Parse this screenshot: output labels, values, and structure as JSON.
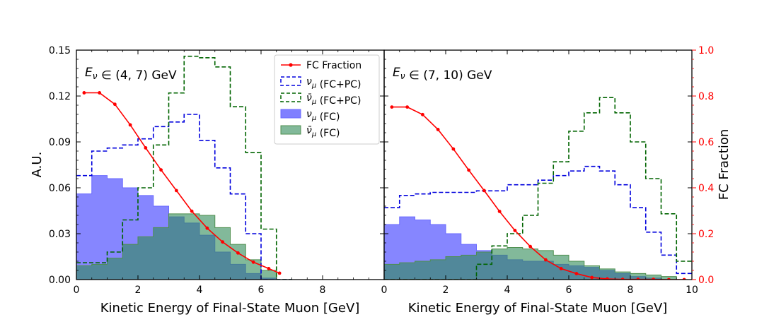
{
  "chart_data": {
    "type": "bar",
    "figure": {
      "xlabel": "Kinetic Energy of Final-State Muon [GeV]",
      "ylabel_left": "A.U.",
      "ylabel_right": "FC Fraction",
      "left_ylim": [
        0,
        0.15
      ],
      "left_yticks": [
        "0.00",
        "0.03",
        "0.06",
        "0.09",
        "0.12",
        "0.15"
      ],
      "right_ylim": [
        0,
        1.0
      ],
      "right_yticks": [
        "0.0",
        "0.2",
        "0.4",
        "0.6",
        "0.8",
        "1.0"
      ],
      "colors": {
        "fc_fraction": "#ff0000",
        "numu_total": "#0000dd",
        "numubar_total": "#006400",
        "numu_fc_fill": "#7f7fff",
        "numubar_fc_fill": "#2e8b57",
        "overlap_fill": "#2f6168",
        "axis": "#000000"
      },
      "legend": {
        "position": "top-center of left panel",
        "entries": [
          {
            "key": "fc",
            "label": "FC Fraction"
          },
          {
            "key": "numu_tot",
            "label": "ν_μ (FC+PC)"
          },
          {
            "key": "numubar_tot",
            "label": "ν̄_μ (FC+PC)"
          },
          {
            "key": "numu_fc",
            "label": "ν_μ (FC)"
          },
          {
            "key": "numubar_fc",
            "label": "ν̄_μ (FC)"
          }
        ]
      }
    },
    "panels": [
      {
        "label": "E_ν ∈ (4, 7) GeV",
        "xlim": [
          0,
          10
        ],
        "xticks": [
          "0",
          "2",
          "4",
          "6",
          "8"
        ],
        "bin_edges": [
          0,
          0.5,
          1,
          1.5,
          2,
          2.5,
          3,
          3.5,
          4,
          4.5,
          5,
          5.5,
          6,
          6.5,
          7
        ],
        "series": [
          {
            "name": "ν_μ (FC+PC)",
            "style": "dashed-step",
            "values": [
              0.068,
              0.084,
              0.086,
              0.088,
              0.092,
              0.1,
              0.103,
              0.108,
              0.091,
              0.073,
              0.056,
              0.03,
              0.0,
              0.0
            ]
          },
          {
            "name": "ν̄_μ (FC+PC)",
            "style": "dashed-step",
            "values": [
              0.011,
              0.011,
              0.018,
              0.039,
              0.06,
              0.088,
              0.122,
              0.146,
              0.145,
              0.139,
              0.113,
              0.083,
              0.033,
              0.0
            ]
          },
          {
            "name": "ν_μ (FC)",
            "style": "filled-step",
            "values": [
              0.056,
              0.068,
              0.066,
              0.06,
              0.055,
              0.048,
              0.041,
              0.037,
              0.029,
              0.018,
              0.01,
              0.004,
              0.001,
              0.0
            ]
          },
          {
            "name": "ν̄_μ (FC)",
            "style": "filled-step",
            "values": [
              0.009,
              0.01,
              0.014,
              0.023,
              0.028,
              0.034,
              0.043,
              0.043,
              0.042,
              0.034,
              0.023,
              0.013,
              0.006,
              0.0
            ]
          }
        ],
        "fc_fraction": {
          "x": [
            0.25,
            0.75,
            1.25,
            1.75,
            2.25,
            2.75,
            3.25,
            3.75,
            4.25,
            4.75,
            5.25,
            5.75,
            6.25,
            6.6
          ],
          "y": [
            0.814,
            0.814,
            0.764,
            0.674,
            0.574,
            0.478,
            0.388,
            0.298,
            0.224,
            0.164,
            0.116,
            0.076,
            0.048,
            0.028
          ]
        }
      },
      {
        "label": "E_ν ∈ (7, 10) GeV",
        "xlim": [
          0,
          10
        ],
        "xticks": [
          "0",
          "2",
          "4",
          "6",
          "8",
          "10"
        ],
        "bin_edges": [
          0,
          0.5,
          1,
          1.5,
          2,
          2.5,
          3,
          3.5,
          4,
          4.5,
          5,
          5.5,
          6,
          6.5,
          7,
          7.5,
          8,
          8.5,
          9,
          9.5,
          10
        ],
        "series": [
          {
            "name": "ν_μ (FC+PC)",
            "style": "dashed-step",
            "values": [
              0.047,
              0.055,
              0.056,
              0.057,
              0.057,
              0.057,
              0.058,
              0.058,
              0.062,
              0.062,
              0.065,
              0.068,
              0.071,
              0.074,
              0.071,
              0.062,
              0.047,
              0.031,
              0.016,
              0.004
            ]
          },
          {
            "name": "ν̄_μ (FC+PC)",
            "style": "dashed-step",
            "values": [
              0.0,
              0.0,
              0.0,
              0.0,
              0.0,
              0.0,
              0.01,
              0.022,
              0.03,
              0.042,
              0.063,
              0.077,
              0.097,
              0.109,
              0.119,
              0.109,
              0.09,
              0.066,
              0.043,
              0.012
            ]
          },
          {
            "name": "ν_μ (FC)",
            "style": "filled-step",
            "values": [
              0.036,
              0.041,
              0.039,
              0.036,
              0.03,
              0.023,
              0.019,
              0.016,
              0.013,
              0.012,
              0.012,
              0.01,
              0.009,
              0.008,
              0.006,
              0.004,
              0.002,
              0.001,
              0.0,
              0.0
            ]
          },
          {
            "name": "ν̄_μ (FC)",
            "style": "filled-step",
            "values": [
              0.01,
              0.011,
              0.012,
              0.013,
              0.015,
              0.016,
              0.018,
              0.02,
              0.021,
              0.02,
              0.019,
              0.016,
              0.012,
              0.009,
              0.007,
              0.005,
              0.004,
              0.003,
              0.002,
              0.0
            ]
          }
        ],
        "fc_fraction": {
          "x": [
            0.25,
            0.75,
            1.25,
            1.75,
            2.25,
            2.75,
            3.25,
            3.75,
            4.25,
            4.75,
            5.25,
            5.75,
            6.25,
            6.75,
            7.25,
            7.75,
            8.25,
            8.75,
            9.25,
            9.75
          ],
          "y": [
            0.752,
            0.752,
            0.719,
            0.654,
            0.569,
            0.477,
            0.388,
            0.297,
            0.214,
            0.144,
            0.086,
            0.048,
            0.026,
            0.009,
            0.003,
            0.001,
            0.001,
            0.001,
            0.0,
            0.0
          ]
        }
      }
    ]
  }
}
